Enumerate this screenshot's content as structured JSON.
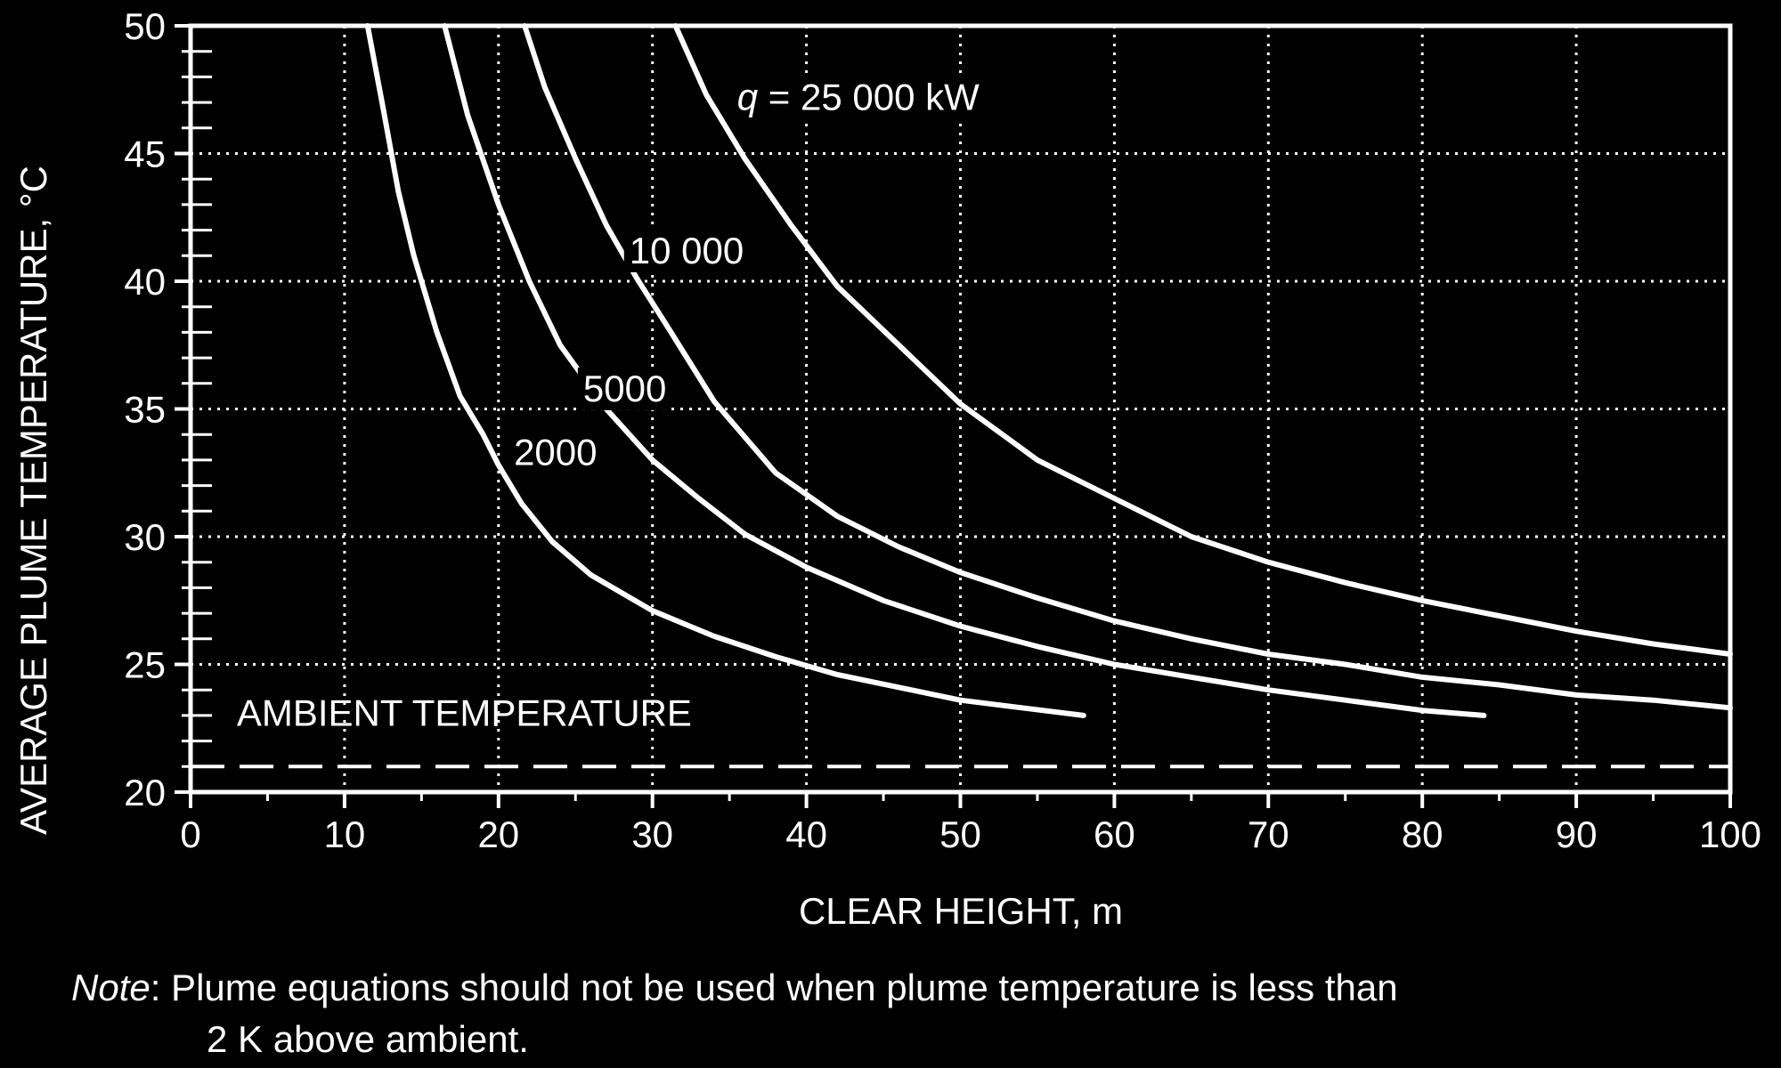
{
  "chart_data": {
    "type": "line",
    "xlabel": "CLEAR HEIGHT, m",
    "ylabel": "AVERAGE PLUME TEMPERATURE, °C",
    "xlim": [
      0,
      100
    ],
    "ylim": [
      20,
      50
    ],
    "x_ticks": [
      0,
      10,
      20,
      30,
      40,
      50,
      60,
      70,
      80,
      90,
      100
    ],
    "y_ticks": [
      20,
      25,
      30,
      35,
      40,
      45,
      50
    ],
    "grid": true,
    "series": [
      {
        "name": "2000",
        "label_at": [
          21,
          32.8
        ],
        "x": [
          11.5,
          12.5,
          13.5,
          14.5,
          16,
          17.5,
          19,
          20,
          21.5,
          23.5,
          26,
          30,
          34,
          38,
          42,
          46,
          50,
          54,
          58
        ],
        "y": [
          50,
          46.8,
          43.5,
          41,
          38,
          35.5,
          34,
          32.8,
          31.3,
          29.8,
          28.5,
          27.1,
          26.1,
          25.3,
          24.6,
          24.1,
          23.6,
          23.3,
          23
        ]
      },
      {
        "name": "5000",
        "label_at": [
          25.5,
          35.3
        ],
        "x": [
          16.5,
          18,
          20,
          22,
          24,
          27,
          30,
          33,
          36,
          40,
          45,
          50,
          55,
          60,
          65,
          70,
          75,
          80,
          84
        ],
        "y": [
          50,
          46.5,
          43,
          40,
          37.5,
          35,
          33,
          31.5,
          30.1,
          28.8,
          27.5,
          26.5,
          25.7,
          25,
          24.5,
          24,
          23.6,
          23.2,
          23
        ]
      },
      {
        "name": "10 000",
        "label_at": [
          28.5,
          40.7
        ],
        "x": [
          21.7,
          23,
          25,
          27,
          29,
          31,
          34,
          38,
          42,
          46,
          50,
          55,
          60,
          65,
          70,
          75,
          80,
          85,
          90,
          95,
          100
        ],
        "y": [
          50,
          47.6,
          44.8,
          42.2,
          40.1,
          38.2,
          35.3,
          32.5,
          30.8,
          29.6,
          28.6,
          27.6,
          26.7,
          26,
          25.4,
          25,
          24.5,
          24.2,
          23.8,
          23.6,
          23.3
        ]
      },
      {
        "name": "q = 25 000 kW",
        "label_at": [
          35.5,
          46.7
        ],
        "x": [
          31.5,
          33.5,
          36,
          39,
          42,
          46,
          50,
          55,
          60,
          65,
          70,
          75,
          80,
          85,
          90,
          95,
          100
        ],
        "y": [
          50,
          47.3,
          44.8,
          42.2,
          39.8,
          37.5,
          35.2,
          33,
          31.5,
          30,
          29,
          28.2,
          27.5,
          26.9,
          26.3,
          25.8,
          25.4
        ]
      }
    ],
    "ambient": {
      "label": "AMBIENT TEMPERATURE",
      "value": 21,
      "label_at": [
        3,
        22.6
      ]
    },
    "note": {
      "label": "Note",
      "line1": ":  Plume equations should not be used when plume temperature is less than",
      "line2": "2 K above ambient."
    }
  }
}
